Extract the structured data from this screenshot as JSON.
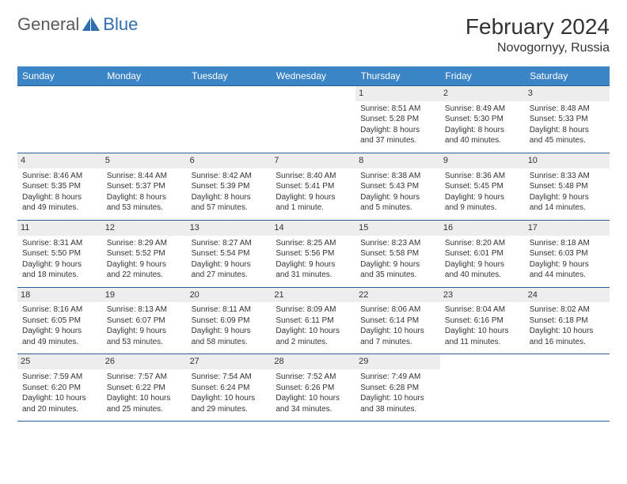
{
  "brand": {
    "text_general": "General",
    "text_blue": "Blue",
    "icon_color": "#2f6faf"
  },
  "header": {
    "month_title": "February 2024",
    "location": "Novogornyy, Russia"
  },
  "day_headers": [
    "Sunday",
    "Monday",
    "Tuesday",
    "Wednesday",
    "Thursday",
    "Friday",
    "Saturday"
  ],
  "colors": {
    "header_bg": "#3b85c6",
    "header_text": "#ffffff",
    "border": "#2d5f8f",
    "daynum_bg": "#ededed",
    "text": "#333333"
  },
  "weeks": [
    [
      null,
      null,
      null,
      null,
      {
        "n": "1",
        "sunrise": "Sunrise: 8:51 AM",
        "sunset": "Sunset: 5:28 PM",
        "d1": "Daylight: 8 hours",
        "d2": "and 37 minutes."
      },
      {
        "n": "2",
        "sunrise": "Sunrise: 8:49 AM",
        "sunset": "Sunset: 5:30 PM",
        "d1": "Daylight: 8 hours",
        "d2": "and 40 minutes."
      },
      {
        "n": "3",
        "sunrise": "Sunrise: 8:48 AM",
        "sunset": "Sunset: 5:33 PM",
        "d1": "Daylight: 8 hours",
        "d2": "and 45 minutes."
      }
    ],
    [
      {
        "n": "4",
        "sunrise": "Sunrise: 8:46 AM",
        "sunset": "Sunset: 5:35 PM",
        "d1": "Daylight: 8 hours",
        "d2": "and 49 minutes."
      },
      {
        "n": "5",
        "sunrise": "Sunrise: 8:44 AM",
        "sunset": "Sunset: 5:37 PM",
        "d1": "Daylight: 8 hours",
        "d2": "and 53 minutes."
      },
      {
        "n": "6",
        "sunrise": "Sunrise: 8:42 AM",
        "sunset": "Sunset: 5:39 PM",
        "d1": "Daylight: 8 hours",
        "d2": "and 57 minutes."
      },
      {
        "n": "7",
        "sunrise": "Sunrise: 8:40 AM",
        "sunset": "Sunset: 5:41 PM",
        "d1": "Daylight: 9 hours",
        "d2": "and 1 minute."
      },
      {
        "n": "8",
        "sunrise": "Sunrise: 8:38 AM",
        "sunset": "Sunset: 5:43 PM",
        "d1": "Daylight: 9 hours",
        "d2": "and 5 minutes."
      },
      {
        "n": "9",
        "sunrise": "Sunrise: 8:36 AM",
        "sunset": "Sunset: 5:45 PM",
        "d1": "Daylight: 9 hours",
        "d2": "and 9 minutes."
      },
      {
        "n": "10",
        "sunrise": "Sunrise: 8:33 AM",
        "sunset": "Sunset: 5:48 PM",
        "d1": "Daylight: 9 hours",
        "d2": "and 14 minutes."
      }
    ],
    [
      {
        "n": "11",
        "sunrise": "Sunrise: 8:31 AM",
        "sunset": "Sunset: 5:50 PM",
        "d1": "Daylight: 9 hours",
        "d2": "and 18 minutes."
      },
      {
        "n": "12",
        "sunrise": "Sunrise: 8:29 AM",
        "sunset": "Sunset: 5:52 PM",
        "d1": "Daylight: 9 hours",
        "d2": "and 22 minutes."
      },
      {
        "n": "13",
        "sunrise": "Sunrise: 8:27 AM",
        "sunset": "Sunset: 5:54 PM",
        "d1": "Daylight: 9 hours",
        "d2": "and 27 minutes."
      },
      {
        "n": "14",
        "sunrise": "Sunrise: 8:25 AM",
        "sunset": "Sunset: 5:56 PM",
        "d1": "Daylight: 9 hours",
        "d2": "and 31 minutes."
      },
      {
        "n": "15",
        "sunrise": "Sunrise: 8:23 AM",
        "sunset": "Sunset: 5:58 PM",
        "d1": "Daylight: 9 hours",
        "d2": "and 35 minutes."
      },
      {
        "n": "16",
        "sunrise": "Sunrise: 8:20 AM",
        "sunset": "Sunset: 6:01 PM",
        "d1": "Daylight: 9 hours",
        "d2": "and 40 minutes."
      },
      {
        "n": "17",
        "sunrise": "Sunrise: 8:18 AM",
        "sunset": "Sunset: 6:03 PM",
        "d1": "Daylight: 9 hours",
        "d2": "and 44 minutes."
      }
    ],
    [
      {
        "n": "18",
        "sunrise": "Sunrise: 8:16 AM",
        "sunset": "Sunset: 6:05 PM",
        "d1": "Daylight: 9 hours",
        "d2": "and 49 minutes."
      },
      {
        "n": "19",
        "sunrise": "Sunrise: 8:13 AM",
        "sunset": "Sunset: 6:07 PM",
        "d1": "Daylight: 9 hours",
        "d2": "and 53 minutes."
      },
      {
        "n": "20",
        "sunrise": "Sunrise: 8:11 AM",
        "sunset": "Sunset: 6:09 PM",
        "d1": "Daylight: 9 hours",
        "d2": "and 58 minutes."
      },
      {
        "n": "21",
        "sunrise": "Sunrise: 8:09 AM",
        "sunset": "Sunset: 6:11 PM",
        "d1": "Daylight: 10 hours",
        "d2": "and 2 minutes."
      },
      {
        "n": "22",
        "sunrise": "Sunrise: 8:06 AM",
        "sunset": "Sunset: 6:14 PM",
        "d1": "Daylight: 10 hours",
        "d2": "and 7 minutes."
      },
      {
        "n": "23",
        "sunrise": "Sunrise: 8:04 AM",
        "sunset": "Sunset: 6:16 PM",
        "d1": "Daylight: 10 hours",
        "d2": "and 11 minutes."
      },
      {
        "n": "24",
        "sunrise": "Sunrise: 8:02 AM",
        "sunset": "Sunset: 6:18 PM",
        "d1": "Daylight: 10 hours",
        "d2": "and 16 minutes."
      }
    ],
    [
      {
        "n": "25",
        "sunrise": "Sunrise: 7:59 AM",
        "sunset": "Sunset: 6:20 PM",
        "d1": "Daylight: 10 hours",
        "d2": "and 20 minutes."
      },
      {
        "n": "26",
        "sunrise": "Sunrise: 7:57 AM",
        "sunset": "Sunset: 6:22 PM",
        "d1": "Daylight: 10 hours",
        "d2": "and 25 minutes."
      },
      {
        "n": "27",
        "sunrise": "Sunrise: 7:54 AM",
        "sunset": "Sunset: 6:24 PM",
        "d1": "Daylight: 10 hours",
        "d2": "and 29 minutes."
      },
      {
        "n": "28",
        "sunrise": "Sunrise: 7:52 AM",
        "sunset": "Sunset: 6:26 PM",
        "d1": "Daylight: 10 hours",
        "d2": "and 34 minutes."
      },
      {
        "n": "29",
        "sunrise": "Sunrise: 7:49 AM",
        "sunset": "Sunset: 6:28 PM",
        "d1": "Daylight: 10 hours",
        "d2": "and 38 minutes."
      },
      null,
      null
    ]
  ]
}
